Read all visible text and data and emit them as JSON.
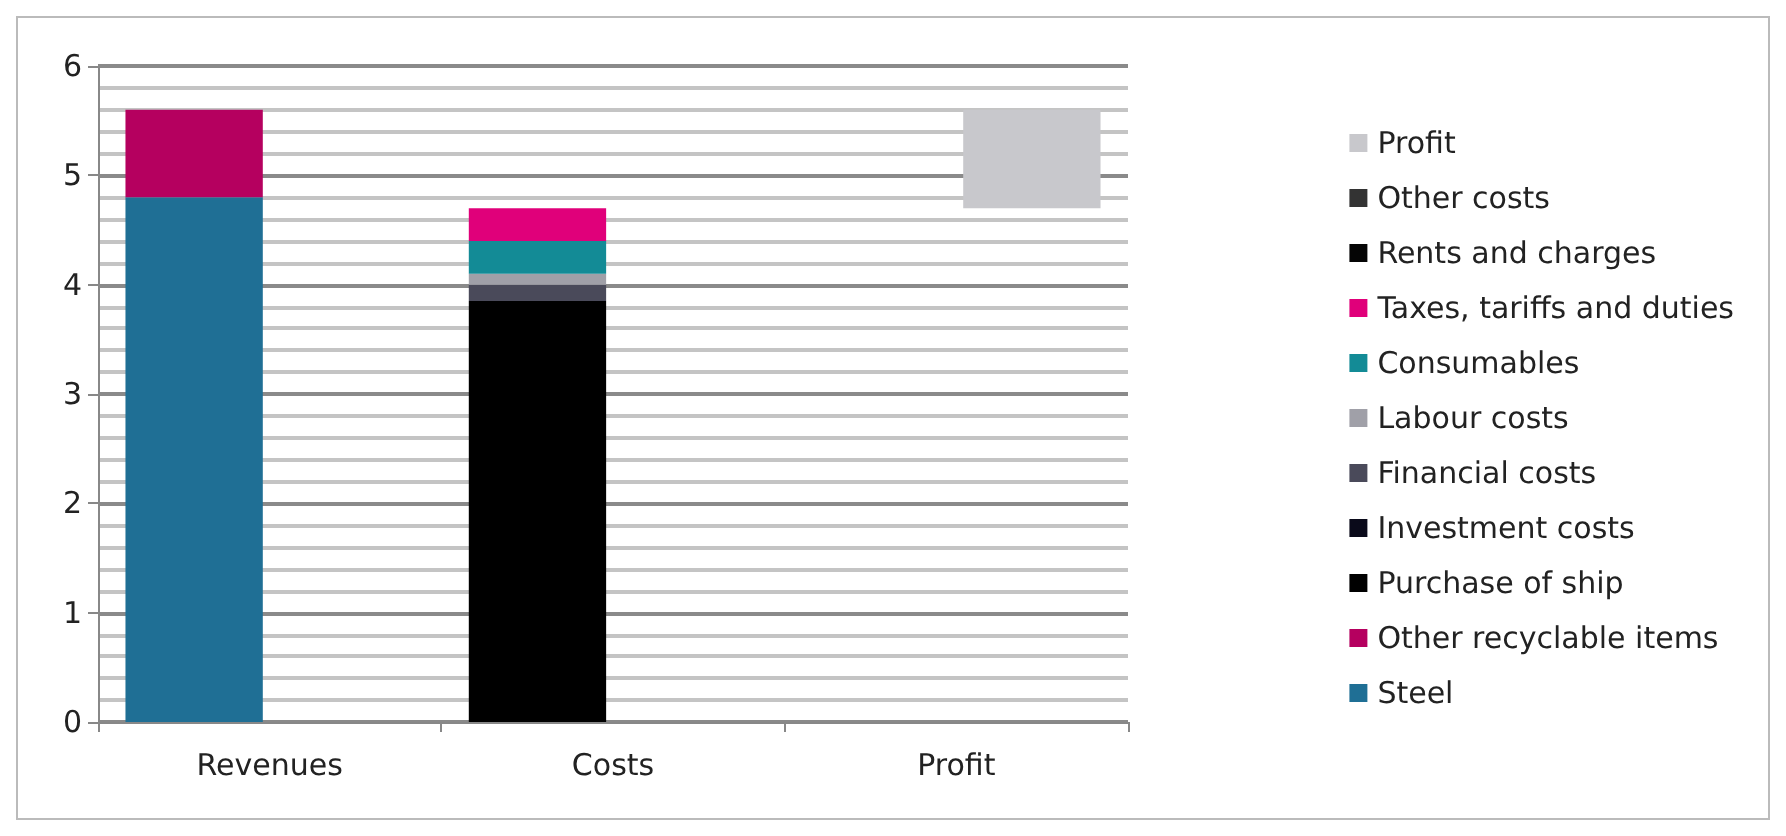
{
  "chart_data": {
    "type": "bar",
    "stacked": true,
    "categories": [
      "Revenues",
      "Costs",
      "Profit"
    ],
    "series": [
      {
        "name": "Steel",
        "color": "#1f6f95",
        "values": [
          4.8,
          null,
          null
        ]
      },
      {
        "name": "Other recyclable items",
        "color": "#b5005f",
        "values": [
          0.8,
          null,
          null
        ]
      },
      {
        "name": "Purchase of ship",
        "color": "#000000",
        "values": [
          null,
          3.85,
          null
        ]
      },
      {
        "name": "Investment costs",
        "color": "#0a0a1a",
        "values": [
          null,
          null,
          null
        ]
      },
      {
        "name": "Financial costs",
        "color": "#4a4a5a",
        "values": [
          null,
          0.15,
          null
        ]
      },
      {
        "name": "Labour costs",
        "color": "#a0a0a8",
        "values": [
          null,
          0.1,
          null
        ]
      },
      {
        "name": "Consumables",
        "color": "#138b96",
        "values": [
          null,
          0.3,
          null
        ]
      },
      {
        "name": "Taxes, tariffs and duties",
        "color": "#e0007a",
        "values": [
          null,
          0.3,
          null
        ]
      },
      {
        "name": "Rents and charges",
        "color": "#050505",
        "values": [
          null,
          null,
          null
        ]
      },
      {
        "name": "Other costs",
        "color": "#333333",
        "values": [
          null,
          null,
          null
        ]
      },
      {
        "name": "Profit",
        "color": "#c8c8cc",
        "values": [
          null,
          null,
          0.9
        ],
        "base": [
          null,
          null,
          4.7
        ]
      }
    ],
    "ylim": [
      0,
      6
    ],
    "yticks": [
      0,
      1,
      2,
      3,
      4,
      5,
      6
    ],
    "grid": true,
    "legend": "right"
  }
}
